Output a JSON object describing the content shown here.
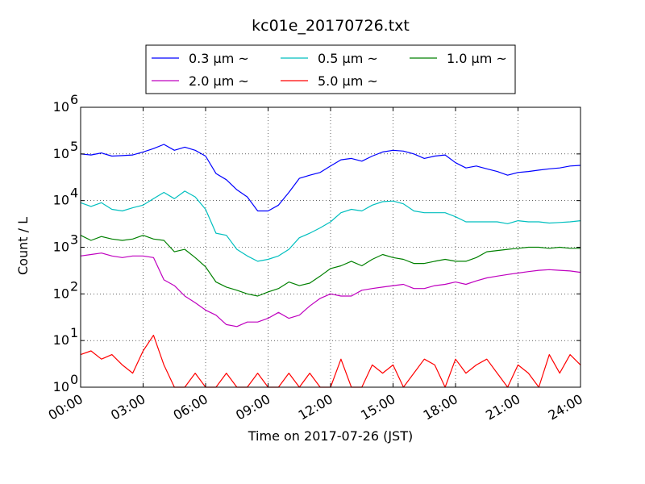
{
  "chart_data": {
    "type": "line",
    "title": "kc01e_20170726.txt",
    "xlabel": "Time on 2017-07-26 (JST)",
    "ylabel": "Count / L",
    "yscale": "log",
    "ylim": [
      1,
      1000000
    ],
    "xlim": [
      "00:00",
      "24:00"
    ],
    "x_ticks": [
      "00:00",
      "03:00",
      "06:00",
      "09:00",
      "12:00",
      "15:00",
      "18:00",
      "21:00",
      "24:00"
    ],
    "y_ticks": [
      {
        "base": "10",
        "exp": "0"
      },
      {
        "base": "10",
        "exp": "1"
      },
      {
        "base": "10",
        "exp": "2"
      },
      {
        "base": "10",
        "exp": "3"
      },
      {
        "base": "10",
        "exp": "4"
      },
      {
        "base": "10",
        "exp": "5"
      },
      {
        "base": "10",
        "exp": "6"
      }
    ],
    "grid": true,
    "legend_position": "above plot",
    "series": [
      {
        "name": "0.3 μm ~",
        "color": "#0000ff",
        "x": [
          "00:00",
          "00:30",
          "01:00",
          "01:30",
          "02:00",
          "02:30",
          "03:00",
          "03:30",
          "04:00",
          "04:30",
          "05:00",
          "05:30",
          "06:00",
          "06:30",
          "07:00",
          "07:30",
          "08:00",
          "08:30",
          "09:00",
          "09:30",
          "10:00",
          "10:30",
          "11:00",
          "11:30",
          "12:00",
          "12:30",
          "13:00",
          "13:30",
          "14:00",
          "14:30",
          "15:00",
          "15:30",
          "16:00",
          "16:30",
          "17:00",
          "17:30",
          "18:00",
          "18:30",
          "19:00",
          "19:30",
          "20:00",
          "20:30",
          "21:00",
          "21:30",
          "22:00",
          "22:30",
          "23:00",
          "23:30",
          "24:00"
        ],
        "y": [
          100000,
          95000,
          105000,
          90000,
          92000,
          95000,
          110000,
          130000,
          160000,
          120000,
          140000,
          120000,
          90000,
          38000,
          28000,
          17000,
          12000,
          6000,
          6000,
          8000,
          15000,
          30000,
          35000,
          40000,
          55000,
          75000,
          80000,
          70000,
          90000,
          110000,
          120000,
          115000,
          100000,
          80000,
          90000,
          95000,
          65000,
          50000,
          55000,
          48000,
          42000,
          35000,
          40000,
          42000,
          45000,
          48000,
          50000,
          55000,
          57000
        ]
      },
      {
        "name": "0.5 μm ~",
        "color": "#00bfbf",
        "x": [
          "00:00",
          "00:30",
          "01:00",
          "01:30",
          "02:00",
          "02:30",
          "03:00",
          "03:30",
          "04:00",
          "04:30",
          "05:00",
          "05:30",
          "06:00",
          "06:30",
          "07:00",
          "07:30",
          "08:00",
          "08:30",
          "09:00",
          "09:30",
          "10:00",
          "10:30",
          "11:00",
          "11:30",
          "12:00",
          "12:30",
          "13:00",
          "13:30",
          "14:00",
          "14:30",
          "15:00",
          "15:30",
          "16:00",
          "16:30",
          "17:00",
          "17:30",
          "18:00",
          "18:30",
          "19:00",
          "19:30",
          "20:00",
          "20:30",
          "21:00",
          "21:30",
          "22:00",
          "22:30",
          "23:00",
          "23:30",
          "24:00"
        ],
        "y": [
          9000,
          7500,
          9000,
          6500,
          6000,
          7000,
          8000,
          11000,
          15000,
          11000,
          16000,
          12000,
          6500,
          2000,
          1800,
          900,
          650,
          500,
          550,
          650,
          900,
          1600,
          2000,
          2600,
          3500,
          5500,
          6500,
          6000,
          8000,
          9500,
          9800,
          8500,
          6000,
          5500,
          5500,
          5500,
          4500,
          3500,
          3500,
          3500,
          3500,
          3200,
          3700,
          3500,
          3500,
          3300,
          3400,
          3500,
          3700
        ]
      },
      {
        "name": "1.0 μm ~",
        "color": "#008000",
        "x": [
          "00:00",
          "00:30",
          "01:00",
          "01:30",
          "02:00",
          "02:30",
          "03:00",
          "03:30",
          "04:00",
          "04:30",
          "05:00",
          "05:30",
          "06:00",
          "06:30",
          "07:00",
          "07:30",
          "08:00",
          "08:30",
          "09:00",
          "09:30",
          "10:00",
          "10:30",
          "11:00",
          "11:30",
          "12:00",
          "12:30",
          "13:00",
          "13:30",
          "14:00",
          "14:30",
          "15:00",
          "15:30",
          "16:00",
          "16:30",
          "17:00",
          "17:30",
          "18:00",
          "18:30",
          "19:00",
          "19:30",
          "20:00",
          "20:30",
          "21:00",
          "21:30",
          "22:00",
          "22:30",
          "23:00",
          "23:30",
          "24:00"
        ],
        "y": [
          1800,
          1400,
          1700,
          1500,
          1400,
          1500,
          1800,
          1500,
          1400,
          800,
          900,
          600,
          380,
          180,
          140,
          120,
          100,
          90,
          110,
          130,
          180,
          150,
          170,
          240,
          350,
          400,
          500,
          400,
          550,
          700,
          600,
          550,
          450,
          450,
          500,
          550,
          500,
          500,
          600,
          800,
          850,
          900,
          950,
          1000,
          1000,
          950,
          1000,
          950,
          950
        ]
      },
      {
        "name": "2.0 μm ~",
        "color": "#bf00bf",
        "x": [
          "00:00",
          "00:30",
          "01:00",
          "01:30",
          "02:00",
          "02:30",
          "03:00",
          "03:30",
          "04:00",
          "04:30",
          "05:00",
          "05:30",
          "06:00",
          "06:30",
          "07:00",
          "07:30",
          "08:00",
          "08:30",
          "09:00",
          "09:30",
          "10:00",
          "10:30",
          "11:00",
          "11:30",
          "12:00",
          "12:30",
          "13:00",
          "13:30",
          "14:00",
          "14:30",
          "15:00",
          "15:30",
          "16:00",
          "16:30",
          "17:00",
          "17:30",
          "18:00",
          "18:30",
          "19:00",
          "19:30",
          "20:00",
          "20:30",
          "21:00",
          "21:30",
          "22:00",
          "22:30",
          "23:00",
          "23:30",
          "24:00"
        ],
        "y": [
          650,
          700,
          750,
          650,
          600,
          650,
          650,
          600,
          200,
          150,
          90,
          65,
          45,
          35,
          22,
          20,
          25,
          25,
          30,
          40,
          30,
          35,
          55,
          80,
          100,
          90,
          90,
          120,
          130,
          140,
          150,
          160,
          130,
          130,
          150,
          160,
          180,
          160,
          190,
          220,
          240,
          260,
          280,
          300,
          320,
          330,
          320,
          310,
          290
        ]
      },
      {
        "name": "5.0 μm ~",
        "color": "#ff0000",
        "x": [
          "00:00",
          "00:30",
          "01:00",
          "01:30",
          "02:00",
          "02:30",
          "03:00",
          "03:30",
          "04:00",
          "04:30",
          "05:00",
          "05:30",
          "06:00",
          "06:30",
          "07:00",
          "07:30",
          "08:00",
          "08:30",
          "09:00",
          "09:30",
          "10:00",
          "10:30",
          "11:00",
          "11:30",
          "12:00",
          "12:30",
          "13:00",
          "13:30",
          "14:00",
          "14:30",
          "15:00",
          "15:30",
          "16:00",
          "16:30",
          "17:00",
          "17:30",
          "18:00",
          "18:30",
          "19:00",
          "19:30",
          "20:00",
          "20:30",
          "21:00",
          "21:30",
          "22:00",
          "22:30",
          "23:00",
          "23:30",
          "24:00"
        ],
        "y": [
          5,
          6,
          4,
          5,
          3,
          2,
          6,
          13,
          3,
          1,
          1,
          2,
          1,
          1,
          2,
          1,
          1,
          2,
          1,
          1,
          2,
          1,
          2,
          1,
          1,
          4,
          1,
          1,
          3,
          2,
          3,
          1,
          2,
          4,
          3,
          1,
          4,
          2,
          3,
          4,
          2,
          1,
          3,
          2,
          1,
          5,
          2,
          5,
          3
        ]
      }
    ]
  }
}
